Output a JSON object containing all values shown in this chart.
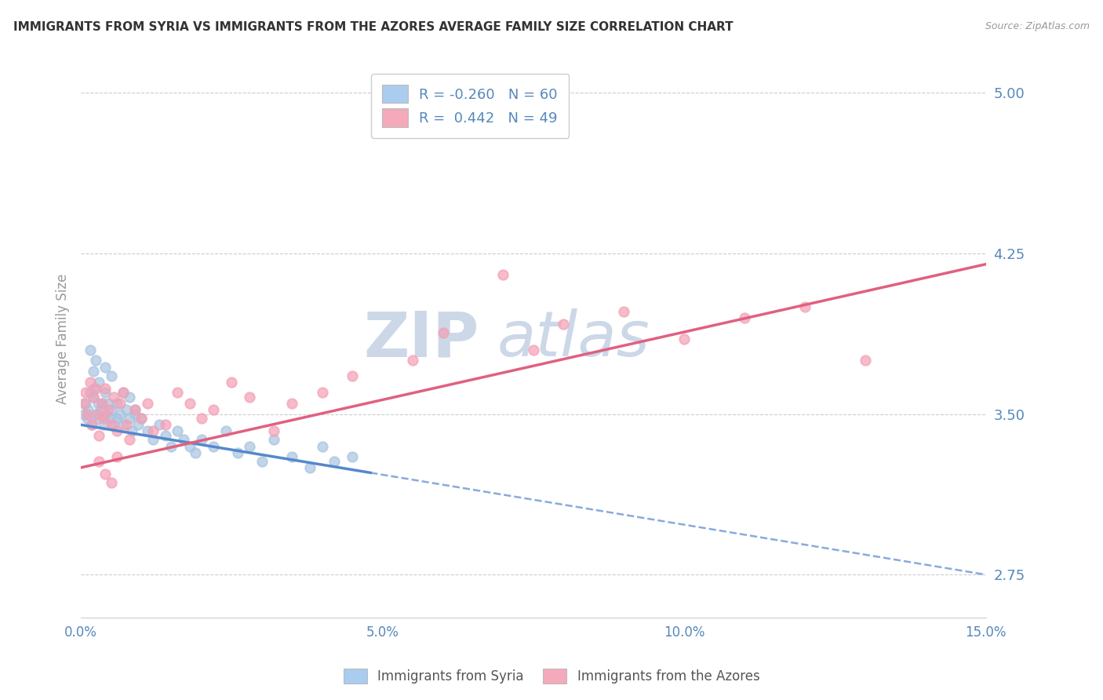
{
  "title": "IMMIGRANTS FROM SYRIA VS IMMIGRANTS FROM THE AZORES AVERAGE FAMILY SIZE CORRELATION CHART",
  "source": "Source: ZipAtlas.com",
  "ylabel": "Average Family Size",
  "ylim": [
    2.55,
    5.15
  ],
  "xlim": [
    0.0,
    15.0
  ],
  "yticks": [
    2.75,
    3.5,
    4.25,
    5.0
  ],
  "xticks": [
    0.0,
    2.5,
    5.0,
    7.5,
    10.0,
    12.5,
    15.0
  ],
  "xtick_labels": [
    "0.0%",
    "",
    "5.0%",
    "",
    "10.0%",
    "",
    "15.0%"
  ],
  "syria_color": "#a8c4e0",
  "azores_color": "#f4a0b5",
  "syria_R": -0.26,
  "syria_N": 60,
  "azores_R": 0.442,
  "azores_N": 49,
  "trend_syria_color": "#5588cc",
  "trend_azores_color": "#e06080",
  "watermark": "ZIP atlas",
  "watermark_color": "#ccd8e8",
  "background_color": "#ffffff",
  "grid_color": "#cccccc",
  "tick_label_color": "#5588bb",
  "legend_syria_color": "#aaccee",
  "legend_azores_color": "#f4aabb",
  "syria_line_solid_end": 4.8,
  "syria_points_x": [
    0.05,
    0.08,
    0.1,
    0.12,
    0.15,
    0.18,
    0.2,
    0.22,
    0.25,
    0.28,
    0.3,
    0.32,
    0.35,
    0.38,
    0.4,
    0.42,
    0.45,
    0.48,
    0.5,
    0.55,
    0.6,
    0.65,
    0.7,
    0.75,
    0.8,
    0.85,
    0.9,
    0.95,
    1.0,
    1.1,
    1.2,
    1.3,
    1.4,
    1.5,
    1.6,
    1.7,
    1.8,
    1.9,
    2.0,
    2.2,
    2.4,
    2.6,
    2.8,
    3.0,
    3.2,
    3.5,
    3.8,
    4.0,
    4.2,
    4.5,
    0.15,
    0.2,
    0.25,
    0.3,
    0.4,
    0.5,
    0.6,
    0.7,
    0.8,
    0.9
  ],
  "syria_points_y": [
    3.5,
    3.55,
    3.48,
    3.52,
    3.6,
    3.45,
    3.58,
    3.62,
    3.5,
    3.55,
    3.48,
    3.52,
    3.55,
    3.45,
    3.6,
    3.5,
    3.55,
    3.48,
    3.52,
    3.45,
    3.48,
    3.5,
    3.45,
    3.52,
    3.48,
    3.42,
    3.5,
    3.45,
    3.48,
    3.42,
    3.38,
    3.45,
    3.4,
    3.35,
    3.42,
    3.38,
    3.35,
    3.32,
    3.38,
    3.35,
    3.42,
    3.32,
    3.35,
    3.28,
    3.38,
    3.3,
    3.25,
    3.35,
    3.28,
    3.3,
    3.8,
    3.7,
    3.75,
    3.65,
    3.72,
    3.68,
    3.55,
    3.6,
    3.58,
    3.52
  ],
  "azores_points_x": [
    0.05,
    0.08,
    0.1,
    0.15,
    0.18,
    0.2,
    0.25,
    0.28,
    0.3,
    0.35,
    0.38,
    0.4,
    0.45,
    0.5,
    0.55,
    0.6,
    0.65,
    0.7,
    0.75,
    0.8,
    0.9,
    1.0,
    1.1,
    1.2,
    1.4,
    1.6,
    1.8,
    2.0,
    2.2,
    2.5,
    2.8,
    3.2,
    3.5,
    4.0,
    4.5,
    5.5,
    6.0,
    7.0,
    7.5,
    8.0,
    9.0,
    10.0,
    11.0,
    12.0,
    13.0,
    0.3,
    0.4,
    0.5,
    0.6
  ],
  "azores_points_y": [
    3.55,
    3.6,
    3.5,
    3.65,
    3.45,
    3.58,
    3.62,
    3.5,
    3.4,
    3.55,
    3.48,
    3.62,
    3.52,
    3.45,
    3.58,
    3.42,
    3.55,
    3.6,
    3.45,
    3.38,
    3.52,
    3.48,
    3.55,
    3.42,
    3.45,
    3.6,
    3.55,
    3.48,
    3.52,
    3.65,
    3.58,
    3.42,
    3.55,
    3.6,
    3.68,
    3.75,
    3.88,
    4.15,
    3.8,
    3.92,
    3.98,
    3.85,
    3.95,
    4.0,
    3.75,
    3.28,
    3.22,
    3.18,
    3.3
  ]
}
